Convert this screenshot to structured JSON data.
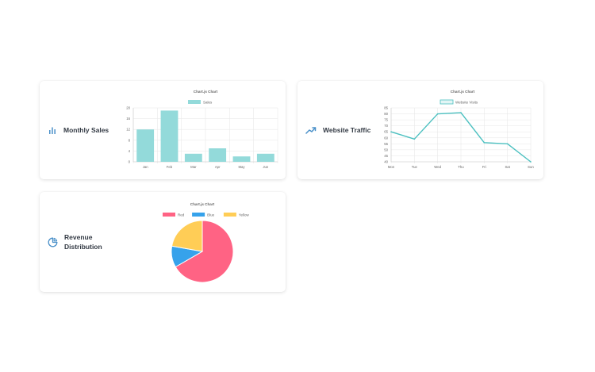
{
  "cards": {
    "sales": {
      "title": "Monthly Sales",
      "icon": "bar-chart-icon"
    },
    "traffic": {
      "title": "Website Traffic",
      "icon": "trending-up-icon"
    },
    "revenue": {
      "title": "Revenue Distribution",
      "icon": "pie-chart-icon"
    }
  },
  "colors": {
    "accent": "#4a90c9",
    "teal": "#4bc0c0",
    "teal_fill": "#93dada"
  },
  "chart_data": [
    {
      "type": "bar",
      "title": "Chart.js Chart",
      "categories": [
        "Jan",
        "Feb",
        "Mar",
        "Apr",
        "May",
        "Jun"
      ],
      "series": [
        {
          "name": "Sales",
          "values": [
            12,
            19,
            3,
            5,
            2,
            3
          ],
          "color": "#93dada"
        }
      ],
      "yticks": [
        "20",
        "16",
        "12",
        "8",
        "4",
        "0"
      ],
      "ylim": [
        0,
        20
      ],
      "grid": true,
      "legend": "top"
    },
    {
      "type": "line",
      "title": "Chart.js Chart",
      "categories": [
        "Mon",
        "Tue",
        "Wed",
        "Thu",
        "Fri",
        "Sat",
        "Sun"
      ],
      "series": [
        {
          "name": "Website Visits",
          "values": [
            65,
            59,
            80,
            81,
            56,
            55,
            40
          ],
          "color": "#4bc0c0"
        }
      ],
      "yticks": [
        "85",
        "80",
        "75",
        "70",
        "65",
        "60",
        "55",
        "50",
        "45",
        "40"
      ],
      "ylim": [
        40,
        85
      ],
      "grid": true,
      "legend": "top"
    },
    {
      "type": "pie",
      "title": "Chart.js Chart",
      "labels": [
        "Red",
        "Blue",
        "Yellow"
      ],
      "values": [
        300,
        50,
        100
      ],
      "colors": [
        "#ff6384",
        "#36a2eb",
        "#ffcd56"
      ],
      "legend": "top"
    }
  ]
}
